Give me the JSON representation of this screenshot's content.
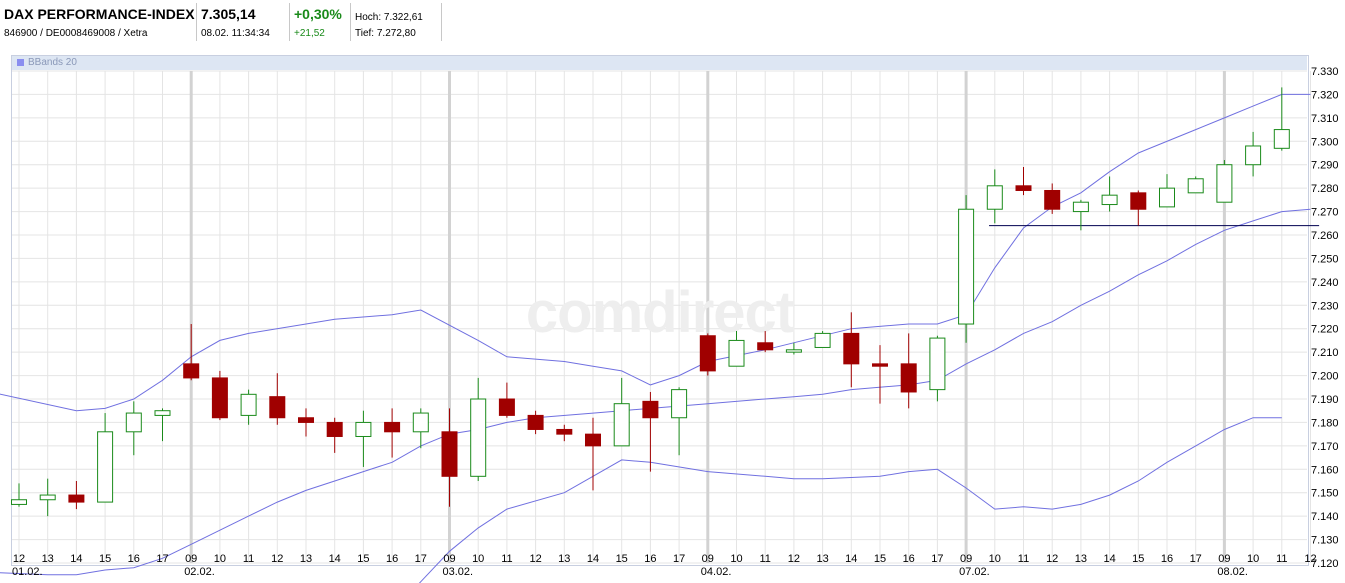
{
  "header": {
    "name": "DAX PERFORMANCE-INDEX",
    "ids": "846900 / DE0008469008 / Xetra",
    "price": "7.305,14",
    "datetime": "08.02. 11:34:34",
    "change_pct": "+0,30%",
    "change_abs": "+21,52",
    "high": "Hoch: 7.322,61",
    "low": "Tief: 7.272,80"
  },
  "legend": {
    "label": "BBands 20"
  },
  "watermark": "comdirect",
  "colors": {
    "up": "#1a8a1a",
    "down": "#a00000",
    "band": "#7070e0",
    "grid": "#e4e4e4"
  },
  "chart_data": {
    "type": "candlestick",
    "y_ticks": [
      "7.120",
      "7.130",
      "7.140",
      "7.150",
      "7.160",
      "7.170",
      "7.180",
      "7.190",
      "7.200",
      "7.210",
      "7.220",
      "7.230",
      "7.240",
      "7.250",
      "7.260",
      "7.270",
      "7.280",
      "7.290",
      "7.300",
      "7.310",
      "7.320",
      "7.330"
    ],
    "ylim": [
      7120,
      7330
    ],
    "x_labels": [
      "12",
      "13",
      "14",
      "15",
      "16",
      "17",
      "09",
      "10",
      "11",
      "12",
      "13",
      "14",
      "15",
      "16",
      "17",
      "09",
      "10",
      "11",
      "12",
      "13",
      "14",
      "15",
      "16",
      "17",
      "09",
      "10",
      "11",
      "12",
      "13",
      "14",
      "15",
      "16",
      "17",
      "09",
      "10",
      "11",
      "12",
      "13",
      "14",
      "15",
      "16",
      "17",
      "09",
      "10",
      "11",
      "12"
    ],
    "day_labels": [
      {
        "label": "01.02.",
        "index": 0
      },
      {
        "label": "02.02.",
        "index": 6
      },
      {
        "label": "03.02.",
        "index": 15
      },
      {
        "label": "04.02.",
        "index": 24
      },
      {
        "label": "07.02.",
        "index": 33
      },
      {
        "label": "08.02.",
        "index": 42
      }
    ],
    "session_breaks": [
      6,
      15,
      24,
      33,
      42
    ],
    "candles": [
      {
        "o": 7145,
        "h": 7154,
        "l": 7144,
        "c": 7147
      },
      {
        "o": 7147,
        "h": 7156,
        "l": 7140,
        "c": 7149
      },
      {
        "o": 7149,
        "h": 7155,
        "l": 7143,
        "c": 7146
      },
      {
        "o": 7146,
        "h": 7184,
        "l": 7146,
        "c": 7176
      },
      {
        "o": 7176,
        "h": 7189,
        "l": 7166,
        "c": 7184
      },
      {
        "o": 7183,
        "h": 7186,
        "l": 7172,
        "c": 7185
      },
      {
        "o": 7205,
        "h": 7222,
        "l": 7198,
        "c": 7199
      },
      {
        "o": 7199,
        "h": 7202,
        "l": 7181,
        "c": 7182
      },
      {
        "o": 7183,
        "h": 7194,
        "l": 7179,
        "c": 7192
      },
      {
        "o": 7191,
        "h": 7201,
        "l": 7179,
        "c": 7182
      },
      {
        "o": 7182,
        "h": 7186,
        "l": 7174,
        "c": 7180
      },
      {
        "o": 7180,
        "h": 7182,
        "l": 7167,
        "c": 7174
      },
      {
        "o": 7174,
        "h": 7185,
        "l": 7161,
        "c": 7180
      },
      {
        "o": 7180,
        "h": 7186,
        "l": 7165,
        "c": 7176
      },
      {
        "o": 7176,
        "h": 7186,
        "l": 7169,
        "c": 7184
      },
      {
        "o": 7176,
        "h": 7186,
        "l": 7144,
        "c": 7157
      },
      {
        "o": 7157,
        "h": 7199,
        "l": 7155,
        "c": 7190
      },
      {
        "o": 7190,
        "h": 7197,
        "l": 7182,
        "c": 7183
      },
      {
        "o": 7183,
        "h": 7185,
        "l": 7175,
        "c": 7177
      },
      {
        "o": 7177,
        "h": 7179,
        "l": 7172,
        "c": 7175
      },
      {
        "o": 7175,
        "h": 7182,
        "l": 7151,
        "c": 7170
      },
      {
        "o": 7170,
        "h": 7199,
        "l": 7170,
        "c": 7188
      },
      {
        "o": 7189,
        "h": 7193,
        "l": 7159,
        "c": 7182
      },
      {
        "o": 7182,
        "h": 7195,
        "l": 7166,
        "c": 7194
      },
      {
        "o": 7217,
        "h": 7218,
        "l": 7200,
        "c": 7202
      },
      {
        "o": 7204,
        "h": 7219,
        "l": 7204,
        "c": 7215
      },
      {
        "o": 7214,
        "h": 7219,
        "l": 7210,
        "c": 7211
      },
      {
        "o": 7210,
        "h": 7214,
        "l": 7209,
        "c": 7211
      },
      {
        "o": 7212,
        "h": 7219,
        "l": 7212,
        "c": 7218
      },
      {
        "o": 7218,
        "h": 7227,
        "l": 7195,
        "c": 7205
      },
      {
        "o": 7205,
        "h": 7213,
        "l": 7188,
        "c": 7204
      },
      {
        "o": 7205,
        "h": 7218,
        "l": 7186,
        "c": 7193
      },
      {
        "o": 7194,
        "h": 7217,
        "l": 7189,
        "c": 7216
      },
      {
        "o": 7222,
        "h": 7277,
        "l": 7214,
        "c": 7271
      },
      {
        "o": 7271,
        "h": 7288,
        "l": 7265,
        "c": 7281
      },
      {
        "o": 7281,
        "h": 7289,
        "l": 7277,
        "c": 7279
      },
      {
        "o": 7279,
        "h": 7282,
        "l": 7269,
        "c": 7271
      },
      {
        "o": 7270,
        "h": 7275,
        "l": 7262,
        "c": 7274
      },
      {
        "o": 7273,
        "h": 7285,
        "l": 7270,
        "c": 7277
      },
      {
        "o": 7278,
        "h": 7279,
        "l": 7264,
        "c": 7271
      },
      {
        "o": 7272,
        "h": 7286,
        "l": 7272,
        "c": 7280
      },
      {
        "o": 7278,
        "h": 7285,
        "l": 7278,
        "c": 7284
      },
      {
        "o": 7274,
        "h": 7292,
        "l": 7274,
        "c": 7290
      },
      {
        "o": 7290,
        "h": 7304,
        "l": 7285,
        "c": 7298
      },
      {
        "o": 7297,
        "h": 7323,
        "l": 7296,
        "c": 7305
      }
    ],
    "bbands": {
      "upper": [
        [
          -1,
          7193
        ],
        [
          2,
          7185
        ],
        [
          3,
          7186
        ],
        [
          4,
          7190
        ],
        [
          5,
          7198
        ],
        [
          6,
          7208
        ],
        [
          7,
          7215
        ],
        [
          8,
          7218
        ],
        [
          10,
          7222
        ],
        [
          11,
          7224
        ],
        [
          13,
          7226
        ],
        [
          14,
          7228
        ],
        [
          16,
          7215
        ],
        [
          17,
          7208
        ],
        [
          19,
          7206
        ],
        [
          20,
          7204
        ],
        [
          21,
          7202
        ],
        [
          22,
          7196
        ],
        [
          23,
          7200
        ],
        [
          24,
          7206
        ],
        [
          26,
          7211
        ],
        [
          28,
          7217
        ],
        [
          29,
          7220
        ],
        [
          31,
          7222
        ],
        [
          32,
          7222
        ],
        [
          33,
          7226
        ],
        [
          34,
          7246
        ],
        [
          35,
          7263
        ],
        [
          36,
          7272
        ],
        [
          37,
          7278
        ],
        [
          38,
          7287
        ],
        [
          39,
          7295
        ],
        [
          41,
          7305
        ],
        [
          42,
          7310
        ],
        [
          43,
          7315
        ],
        [
          44,
          7320
        ],
        [
          45,
          7320
        ]
      ],
      "middle": [
        [
          -1,
          7116
        ],
        [
          1,
          7115
        ],
        [
          2,
          7115
        ],
        [
          3,
          7117
        ],
        [
          4,
          7118
        ],
        [
          5,
          7122
        ],
        [
          6,
          7128
        ],
        [
          7,
          7134
        ],
        [
          8,
          7140
        ],
        [
          9,
          7146
        ],
        [
          10,
          7151
        ],
        [
          11,
          7155
        ],
        [
          12,
          7159
        ],
        [
          13,
          7163
        ],
        [
          14,
          7170
        ],
        [
          15,
          7175
        ],
        [
          16,
          7177
        ],
        [
          17,
          7180
        ],
        [
          18,
          7182
        ],
        [
          20,
          7184
        ],
        [
          21,
          7185
        ],
        [
          22,
          7186
        ],
        [
          24,
          7188
        ],
        [
          26,
          7190
        ],
        [
          27,
          7191
        ],
        [
          28,
          7192
        ],
        [
          29,
          7194
        ],
        [
          31,
          7196
        ],
        [
          32,
          7198
        ],
        [
          33,
          7205
        ],
        [
          34,
          7211
        ],
        [
          35,
          7218
        ],
        [
          36,
          7223
        ],
        [
          37,
          7230
        ],
        [
          38,
          7236
        ],
        [
          39,
          7243
        ],
        [
          40,
          7249
        ],
        [
          41,
          7256
        ],
        [
          42,
          7262
        ],
        [
          43,
          7266
        ],
        [
          44,
          7270
        ],
        [
          45,
          7271
        ]
      ],
      "lower": [
        [
          13,
          7099
        ],
        [
          14,
          7112
        ],
        [
          15,
          7125
        ],
        [
          16,
          7135
        ],
        [
          17,
          7143
        ],
        [
          19,
          7150
        ],
        [
          20,
          7157
        ],
        [
          21,
          7164
        ],
        [
          22,
          7163
        ],
        [
          24,
          7159
        ],
        [
          26,
          7157
        ],
        [
          27,
          7156
        ],
        [
          28,
          7156
        ],
        [
          30,
          7157
        ],
        [
          31,
          7159
        ],
        [
          32,
          7160
        ],
        [
          33,
          7152
        ],
        [
          34,
          7143
        ],
        [
          35,
          7144
        ],
        [
          36,
          7143
        ],
        [
          37,
          7145
        ],
        [
          38,
          7149
        ],
        [
          39,
          7155
        ],
        [
          40,
          7163
        ],
        [
          41,
          7170
        ],
        [
          42,
          7177
        ],
        [
          43,
          7182
        ],
        [
          44,
          7182
        ]
      ]
    },
    "reference_line": {
      "y": 7264,
      "from": 33.8,
      "to": 45.3
    }
  }
}
